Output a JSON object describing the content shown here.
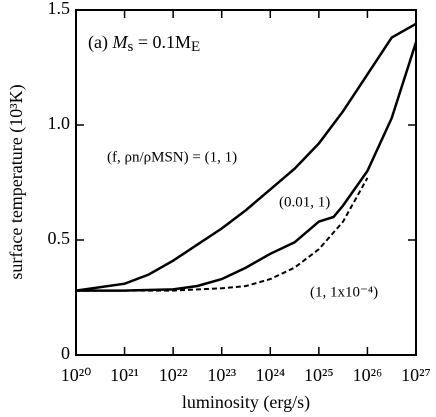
{
  "chart_data": {
    "type": "line",
    "annotation": {
      "prefix": "(a)",
      "symbol": "M",
      "sub": "s",
      "rest": " = 0.1M",
      "rest_sub": "E"
    },
    "x_label": "luminosity (erg/s)",
    "y_label": "surface temperature (10³K)",
    "xscale": "log",
    "xlim": [
      1e+20,
      1e+27
    ],
    "xticks": [
      {
        "value": 1e+20,
        "label": "10²⁰"
      },
      {
        "value": 1e+21,
        "label": "10²¹"
      },
      {
        "value": 1e+22,
        "label": "10²²"
      },
      {
        "value": 1e+23,
        "label": "10²³"
      },
      {
        "value": 1e+24,
        "label": "10²⁴"
      },
      {
        "value": 1e+25,
        "label": "10²⁵"
      },
      {
        "value": 1e+26,
        "label": "10²⁶"
      },
      {
        "value": 1e+27,
        "label": "10²⁷"
      }
    ],
    "ylim": [
      0,
      1.5
    ],
    "yticks": [
      0,
      0.5,
      {
        "value": 1.0,
        "label": "1.0"
      },
      1.5
    ],
    "grid": false,
    "series": [
      {
        "name": "(f, ρn/ρMSN) = (1, 1)",
        "color": "#000000",
        "style": "solid",
        "x": [
          1e+20,
          1e+21,
          3.16e+21,
          1e+22,
          3.16e+22,
          1e+23,
          3.16e+23,
          1e+24,
          3.16e+24,
          1e+25,
          3.16e+25,
          1e+26,
          3.16e+26,
          1e+27
        ],
        "values": [
          0.28,
          0.31,
          0.35,
          0.41,
          0.48,
          0.55,
          0.63,
          0.72,
          0.81,
          0.92,
          1.06,
          1.22,
          1.38,
          1.44
        ]
      },
      {
        "name": "(0.01, 1)",
        "color": "#000000",
        "style": "solid",
        "x": [
          1e+20,
          1e+21,
          1e+22,
          3.16e+22,
          1e+23,
          3.16e+23,
          1e+24,
          3.16e+24,
          1e+25,
          2e+25,
          3.16e+25,
          1e+26,
          3.16e+26,
          1e+27
        ],
        "values": [
          0.28,
          0.28,
          0.285,
          0.3,
          0.33,
          0.38,
          0.44,
          0.49,
          0.58,
          0.6,
          0.65,
          0.8,
          1.03,
          1.36
        ]
      },
      {
        "name": "(1, 1x10⁻⁴)",
        "color": "#000000",
        "style": "dashed",
        "x": [
          1e+20,
          1e+21,
          1e+22,
          1e+23,
          3.16e+23,
          1e+24,
          3.16e+24,
          1e+25,
          3.16e+25,
          1e+26
        ],
        "values": [
          0.28,
          0.28,
          0.28,
          0.29,
          0.3,
          0.33,
          0.38,
          0.46,
          0.58,
          0.77
        ]
      }
    ]
  }
}
